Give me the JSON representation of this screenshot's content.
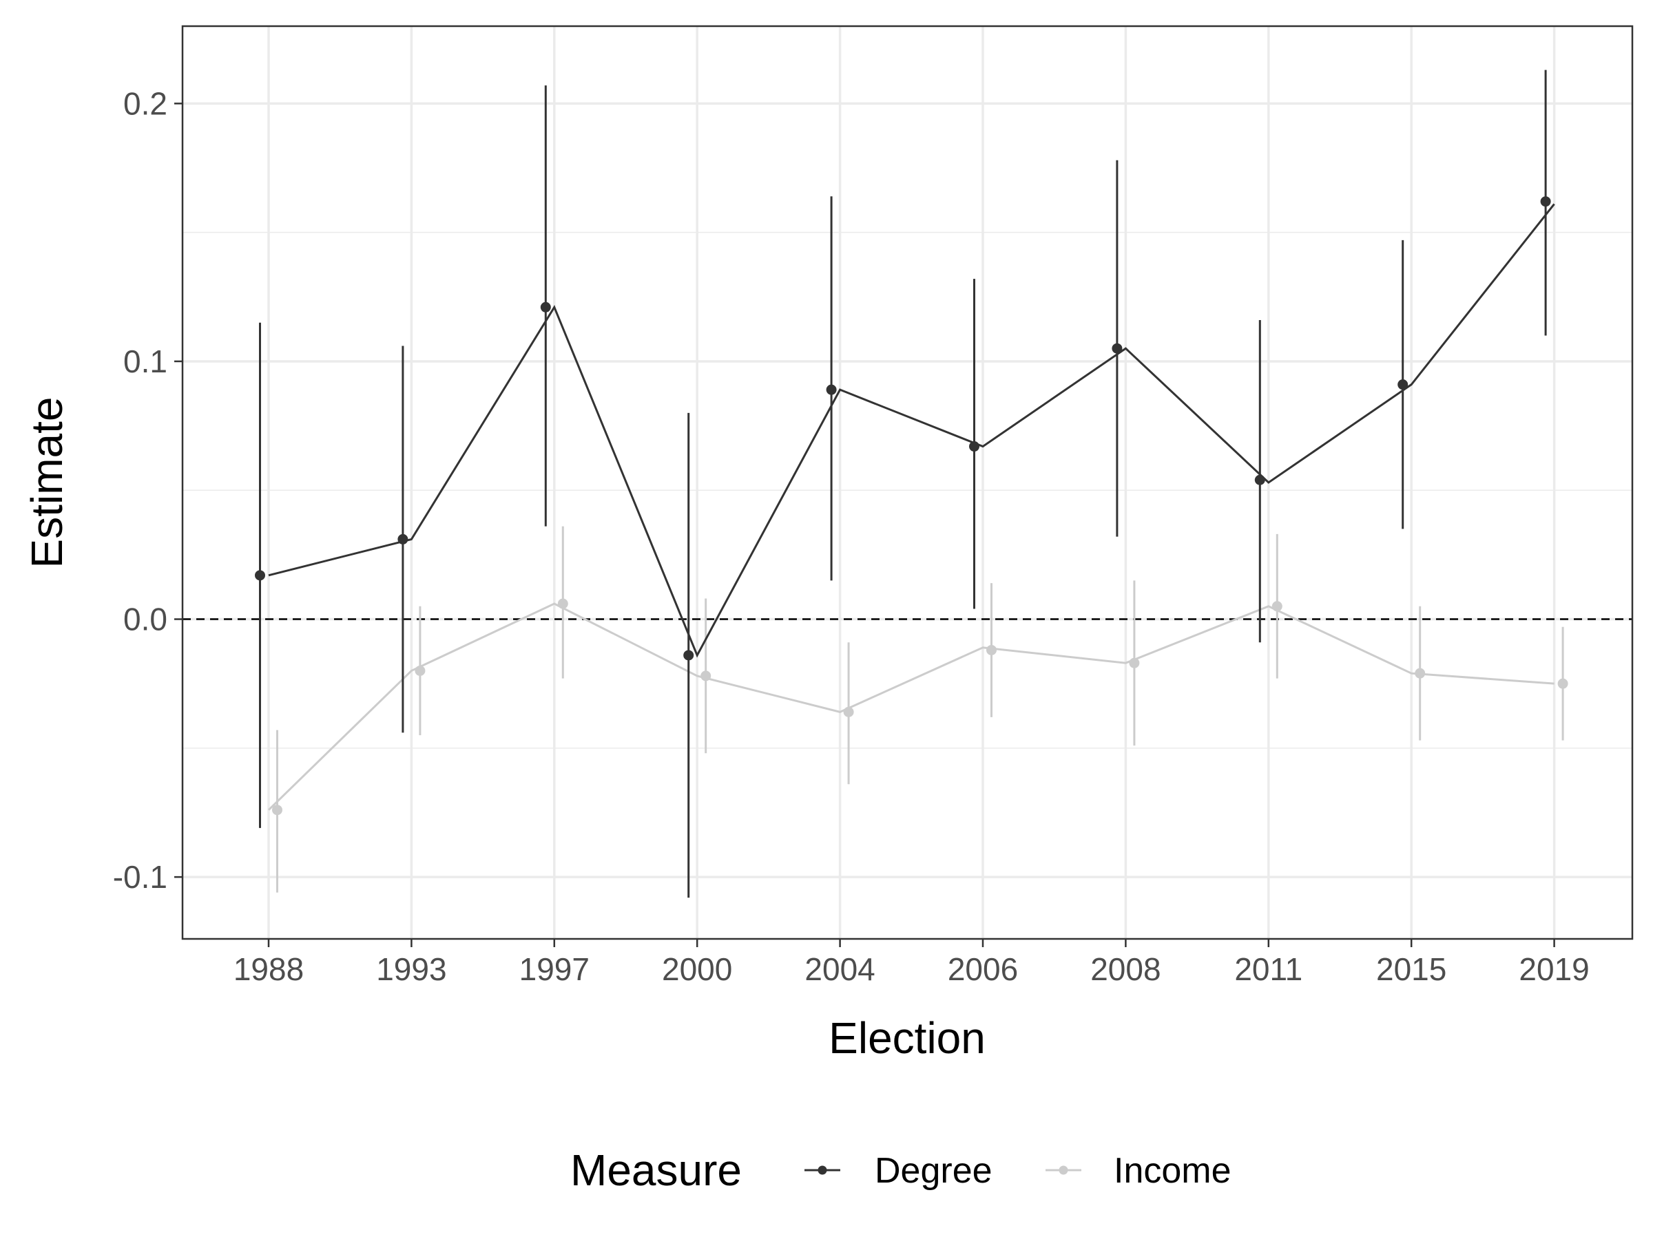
{
  "chart_data": {
    "type": "line",
    "xlabel": "Election",
    "ylabel": "Estimate",
    "categories": [
      "1988",
      "1993",
      "1997",
      "2000",
      "2004",
      "2006",
      "2008",
      "2011",
      "2015",
      "2019"
    ],
    "ylim": [
      -0.124,
      0.23
    ],
    "yticks": [
      "0.2",
      "0.1",
      "0.0",
      "-0.1"
    ],
    "ytick_values": [
      0.2,
      0.1,
      0.0,
      -0.1
    ],
    "reference_line": 0.0,
    "grid": true,
    "legend": {
      "title": "Measure",
      "position": "bottom"
    },
    "series": [
      {
        "name": "Degree",
        "color": "#333333",
        "line": [
          0.017,
          0.031,
          0.121,
          -0.014,
          0.089,
          0.067,
          0.105,
          0.053,
          0.091,
          0.161
        ],
        "points": [
          0.017,
          0.031,
          0.121,
          -0.014,
          0.089,
          0.067,
          0.105,
          0.054,
          0.091,
          0.162
        ],
        "ci_low": [
          -0.081,
          -0.044,
          0.036,
          -0.108,
          0.015,
          0.004,
          0.032,
          -0.009,
          0.035,
          0.11
        ],
        "ci_high": [
          0.115,
          0.106,
          0.207,
          0.08,
          0.164,
          0.132,
          0.178,
          0.116,
          0.147,
          0.213
        ]
      },
      {
        "name": "Income",
        "color": "#cccccc",
        "line": [
          -0.074,
          -0.02,
          0.006,
          -0.022,
          -0.036,
          -0.011,
          -0.017,
          0.005,
          -0.021,
          -0.025
        ],
        "points": [
          -0.074,
          -0.02,
          0.006,
          -0.022,
          -0.036,
          -0.012,
          -0.017,
          0.005,
          -0.021,
          -0.025
        ],
        "ci_low": [
          -0.106,
          -0.045,
          -0.023,
          -0.052,
          -0.064,
          -0.038,
          -0.049,
          -0.023,
          -0.047,
          -0.047
        ],
        "ci_high": [
          -0.043,
          0.005,
          0.036,
          0.008,
          -0.009,
          0.014,
          0.015,
          0.033,
          0.005,
          -0.003
        ]
      }
    ]
  }
}
